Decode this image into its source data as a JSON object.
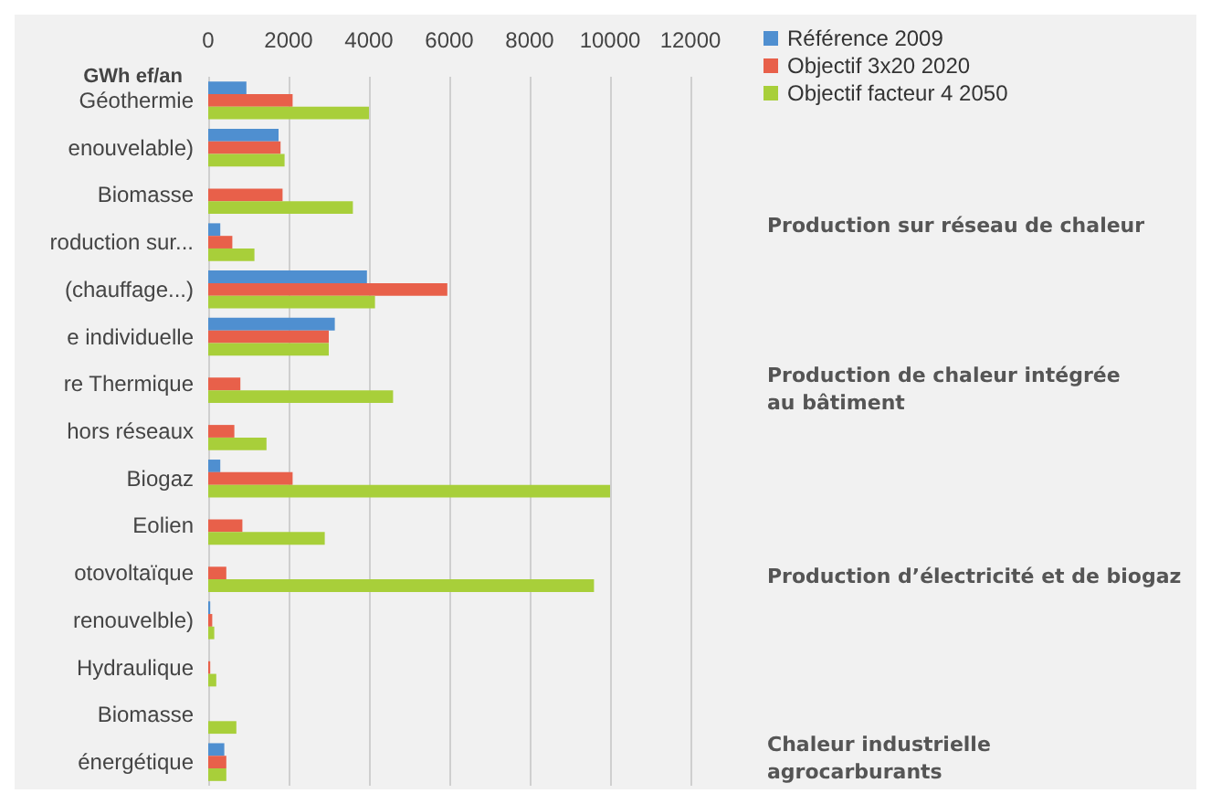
{
  "chart_data": {
    "type": "bar",
    "orientation": "horizontal",
    "xlabel": "GWh ef/an",
    "categories": [
      "Géothermie",
      "enouvelable)",
      "Biomasse",
      "roduction sur...",
      "(chauffage...)",
      "e individuelle",
      "re Thermique",
      "hors réseaux",
      "Biogaz",
      "Eolien",
      "otovoltaïque",
      "renouvelble)",
      "Hydraulique",
      "Biomasse",
      "énergétique"
    ],
    "series": [
      {
        "name": "Référence 2009",
        "color": "#4f8fd0",
        "values": [
          950,
          1750,
          0,
          300,
          3950,
          3150,
          0,
          0,
          300,
          0,
          0,
          50,
          0,
          0,
          400
        ]
      },
      {
        "name": "Objectif 3x20 2020",
        "color": "#e8604a",
        "values": [
          2100,
          1800,
          1850,
          600,
          5950,
          3000,
          800,
          650,
          2100,
          850,
          450,
          100,
          50,
          0,
          450
        ]
      },
      {
        "name": "Objectif facteur 4 2050",
        "color": "#a8cf3a",
        "values": [
          4000,
          1900,
          3600,
          1150,
          4150,
          3000,
          4600,
          1450,
          10000,
          2900,
          9600,
          150,
          200,
          700,
          450
        ]
      }
    ],
    "xlim": [
      0,
      12000
    ],
    "xticks": [
      0,
      2000,
      4000,
      6000,
      8000,
      10000,
      12000
    ],
    "grid": "x",
    "legend": "top right",
    "annotations": [
      "Production sur réseau de chaleur",
      "Production de chaleur intégrée\nau bâtiment",
      "Production d’électricité et de biogaz",
      "Chaleur industrielle\nagrocarburants"
    ]
  }
}
